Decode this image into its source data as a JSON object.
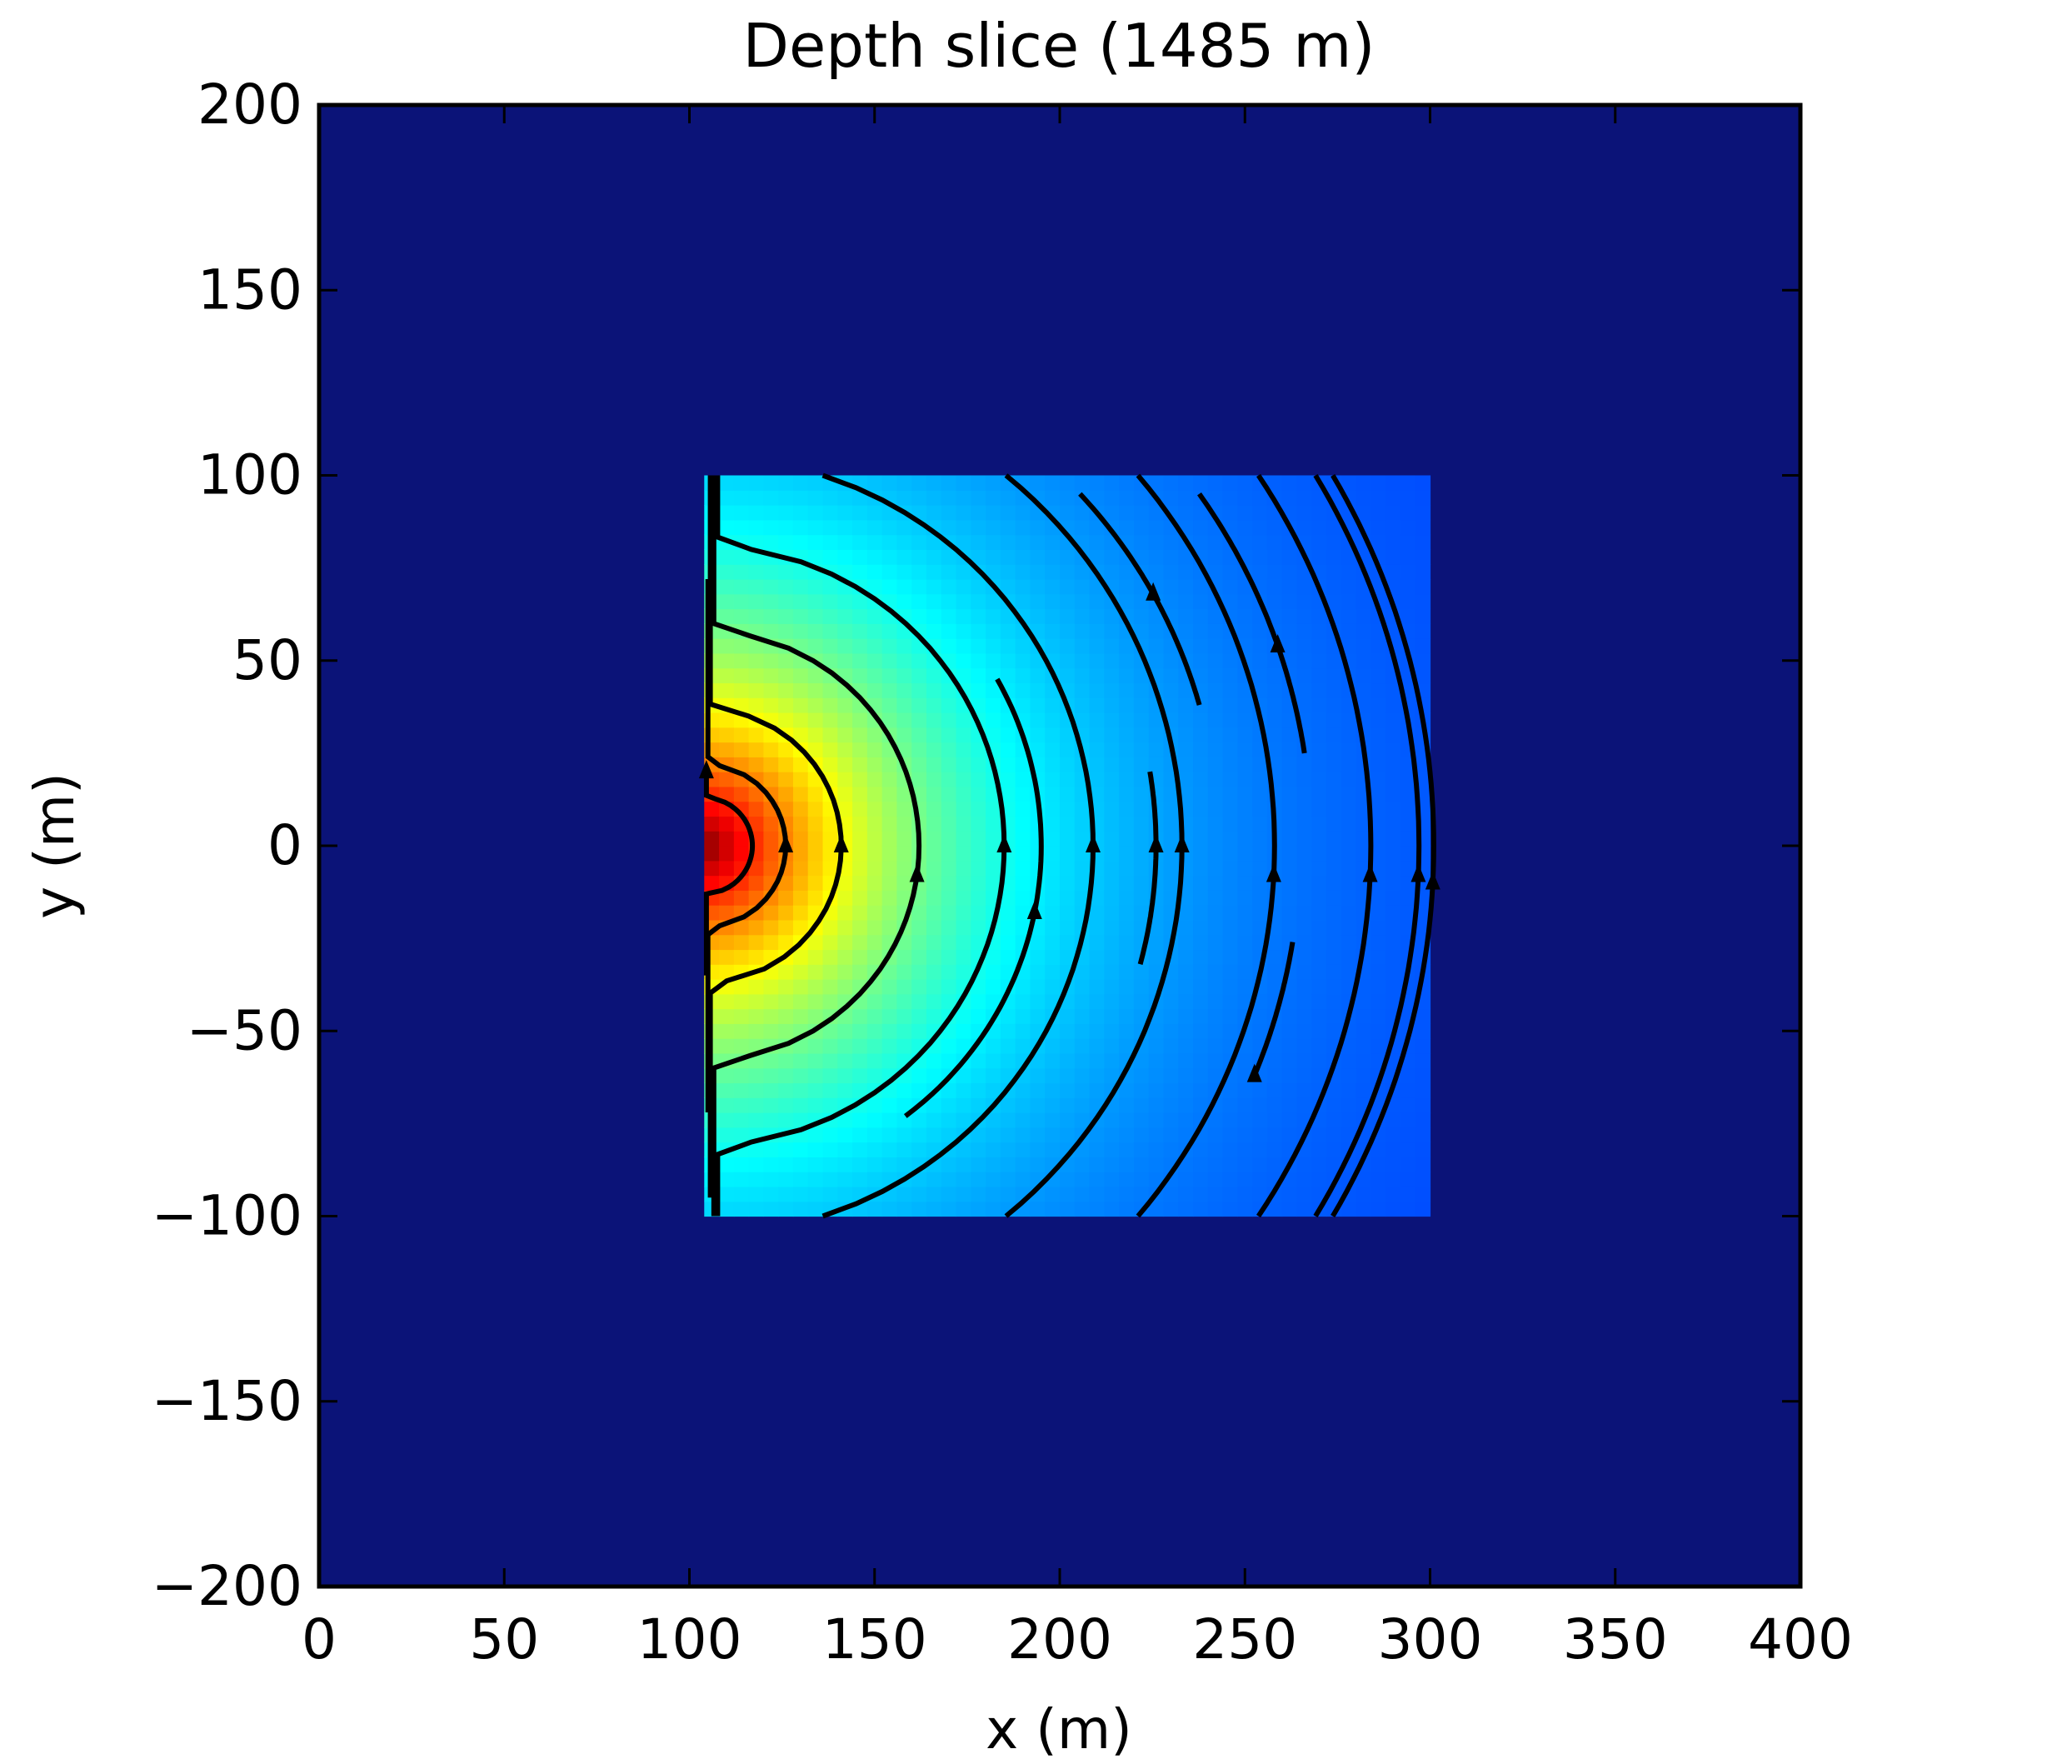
{
  "chart_data": {
    "type": "heatmap",
    "title": "Depth slice (1485 m)",
    "xlabel": "x (m)",
    "ylabel": "y (m)",
    "xlim": [
      0,
      400
    ],
    "ylim": [
      -200,
      200
    ],
    "x_ticks": [
      0,
      50,
      100,
      150,
      200,
      250,
      300,
      350,
      400
    ],
    "y_ticks": [
      200,
      150,
      100,
      50,
      0,
      -50,
      -100,
      -150,
      -200
    ],
    "x_tick_labels": [
      "0",
      "50",
      "100",
      "150",
      "200",
      "250",
      "300",
      "350",
      "400"
    ],
    "y_tick_labels": [
      "200",
      "150",
      "100",
      "50",
      "0",
      "−50",
      "−100",
      "−150",
      "−200"
    ],
    "colormap": "jet",
    "background_color": "#0b1378",
    "active_region": {
      "x": [
        104,
        300
      ],
      "y": [
        -100,
        100
      ]
    },
    "field_peak": {
      "x": 104,
      "y": 0
    },
    "field_falloff_m": 60,
    "streamlines": [
      {
        "x_at_center": 117,
        "y_range": [
          -35,
          20
        ],
        "arrow_y": 20
      },
      {
        "x_at_center": 126,
        "y_range": [
          -72,
          72
        ],
        "arrow_y": 0
      },
      {
        "x_at_center": 141,
        "y_range": [
          -95,
          100
        ],
        "arrow_y": 0
      },
      {
        "x_at_center": 162,
        "y_range": [
          -100,
          100
        ],
        "arrow_y": -8
      },
      {
        "x_at_center": 185,
        "y_range": [
          -100,
          100
        ],
        "arrow_y": 0
      },
      {
        "x_at_center": 195,
        "y_range": [
          -73,
          45
        ],
        "arrow_y": -18
      },
      {
        "x_at_center": 209,
        "y_range": [
          -100,
          100
        ],
        "arrow_y": 0
      },
      {
        "x_at_center": 226,
        "y_range": [
          -32,
          20
        ],
        "arrow_y": 0
      },
      {
        "x_at_center": 233,
        "y_range": [
          -100,
          100
        ],
        "arrow_y": 0
      },
      {
        "x_at_center": 243,
        "y_range": [
          38,
          95
        ],
        "arrow_y": 68
      },
      {
        "x_at_center": 258,
        "y_range": [
          -100,
          100
        ],
        "arrow_y": -8
      },
      {
        "x_at_center": 268,
        "y_range": [
          25,
          95
        ],
        "arrow_y": 54
      },
      {
        "x_at_center": 265,
        "y_range": [
          -62,
          -26
        ],
        "arrow_y": -62
      },
      {
        "x_at_center": 284,
        "y_range": [
          -100,
          100
        ],
        "arrow_y": -8
      },
      {
        "x_at_center": 297,
        "y_range": [
          -100,
          100
        ],
        "arrow_y": -8
      },
      {
        "x_at_center": 301,
        "y_range": [
          -100,
          100
        ],
        "arrow_y": -10
      }
    ]
  }
}
